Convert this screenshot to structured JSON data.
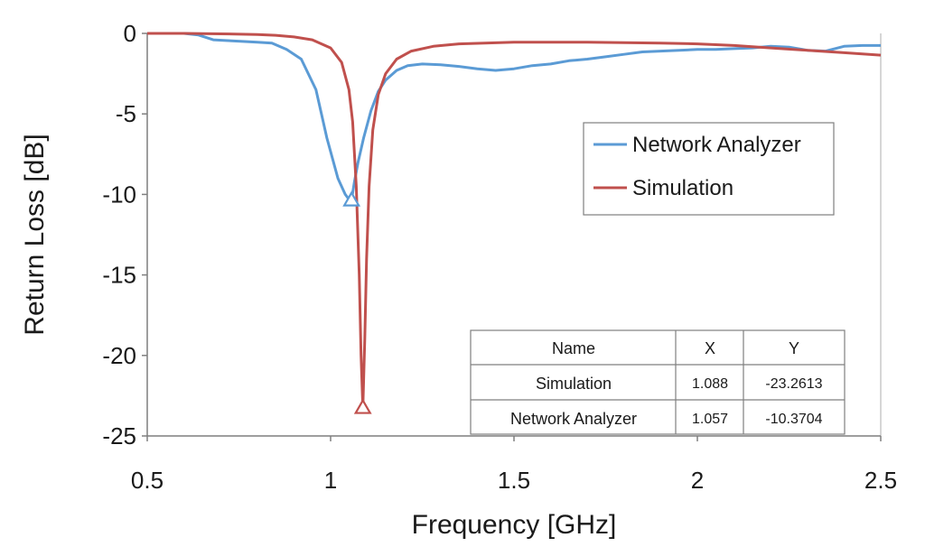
{
  "chart_data": {
    "type": "line",
    "xlabel": "Frequency [GHz]",
    "ylabel": "Return Loss [dB]",
    "xlim": [
      0.5,
      2.5
    ],
    "ylim": [
      -25,
      0
    ],
    "xticks": [
      "0.5",
      "1",
      "1.5",
      "2",
      "2.5"
    ],
    "yticks": [
      "0",
      "-5",
      "-10",
      "-15",
      "-20",
      "-25"
    ],
    "grid": false,
    "legend_position": "right",
    "series": [
      {
        "name": "Network Analyzer",
        "color": "#5b9bd5",
        "marker_at": [
          1.057,
          -10.3704
        ],
        "x": [
          0.5,
          0.6,
          0.64,
          0.68,
          0.72,
          0.76,
          0.8,
          0.84,
          0.88,
          0.92,
          0.96,
          0.99,
          1.02,
          1.04,
          1.05,
          1.057,
          1.065,
          1.075,
          1.09,
          1.11,
          1.13,
          1.15,
          1.18,
          1.21,
          1.25,
          1.3,
          1.35,
          1.4,
          1.45,
          1.5,
          1.55,
          1.6,
          1.65,
          1.7,
          1.75,
          1.8,
          1.85,
          1.9,
          1.95,
          2.0,
          2.05,
          2.1,
          2.15,
          2.2,
          2.25,
          2.3,
          2.35,
          2.4,
          2.45,
          2.5
        ],
        "y": [
          0,
          0,
          -0.1,
          -0.4,
          -0.45,
          -0.5,
          -0.55,
          -0.6,
          -1.0,
          -1.6,
          -3.5,
          -6.5,
          -9.0,
          -10.0,
          -10.3,
          -10.3704,
          -9.2,
          -8.0,
          -6.5,
          -4.8,
          -3.6,
          -2.9,
          -2.3,
          -2.0,
          -1.9,
          -1.95,
          -2.05,
          -2.2,
          -2.3,
          -2.2,
          -2.0,
          -1.9,
          -1.7,
          -1.6,
          -1.45,
          -1.3,
          -1.15,
          -1.1,
          -1.05,
          -1.0,
          -1.0,
          -0.95,
          -0.9,
          -0.8,
          -0.85,
          -1.05,
          -1.1,
          -0.8,
          -0.75,
          -0.75
        ]
      },
      {
        "name": "Simulation",
        "color": "#c0504d",
        "marker_at": [
          1.088,
          -23.2613
        ],
        "x": [
          0.5,
          0.6,
          0.7,
          0.8,
          0.85,
          0.9,
          0.95,
          1.0,
          1.03,
          1.05,
          1.06,
          1.07,
          1.078,
          1.083,
          1.088,
          1.093,
          1.098,
          1.105,
          1.115,
          1.13,
          1.15,
          1.18,
          1.22,
          1.28,
          1.35,
          1.5,
          1.7,
          1.9,
          2.0,
          2.1,
          2.2,
          2.3,
          2.4,
          2.5
        ],
        "y": [
          0,
          0,
          -0.03,
          -0.07,
          -0.12,
          -0.22,
          -0.4,
          -0.9,
          -1.8,
          -3.5,
          -5.5,
          -9.5,
          -15.0,
          -20.0,
          -23.2613,
          -19.0,
          -14.0,
          -9.5,
          -6.0,
          -3.8,
          -2.5,
          -1.6,
          -1.1,
          -0.8,
          -0.65,
          -0.55,
          -0.55,
          -0.6,
          -0.65,
          -0.75,
          -0.9,
          -1.05,
          -1.2,
          -1.35
        ]
      }
    ],
    "legend": [
      {
        "label": "Network Analyzer",
        "color": "#5b9bd5"
      },
      {
        "label": "Simulation",
        "color": "#c0504d"
      }
    ],
    "table": {
      "headers": [
        "Name",
        "X",
        "Y"
      ],
      "rows": [
        [
          "Simulation",
          "1.088",
          "-23.2613"
        ],
        [
          "Network Analyzer",
          "1.057",
          "-10.3704"
        ]
      ]
    }
  }
}
